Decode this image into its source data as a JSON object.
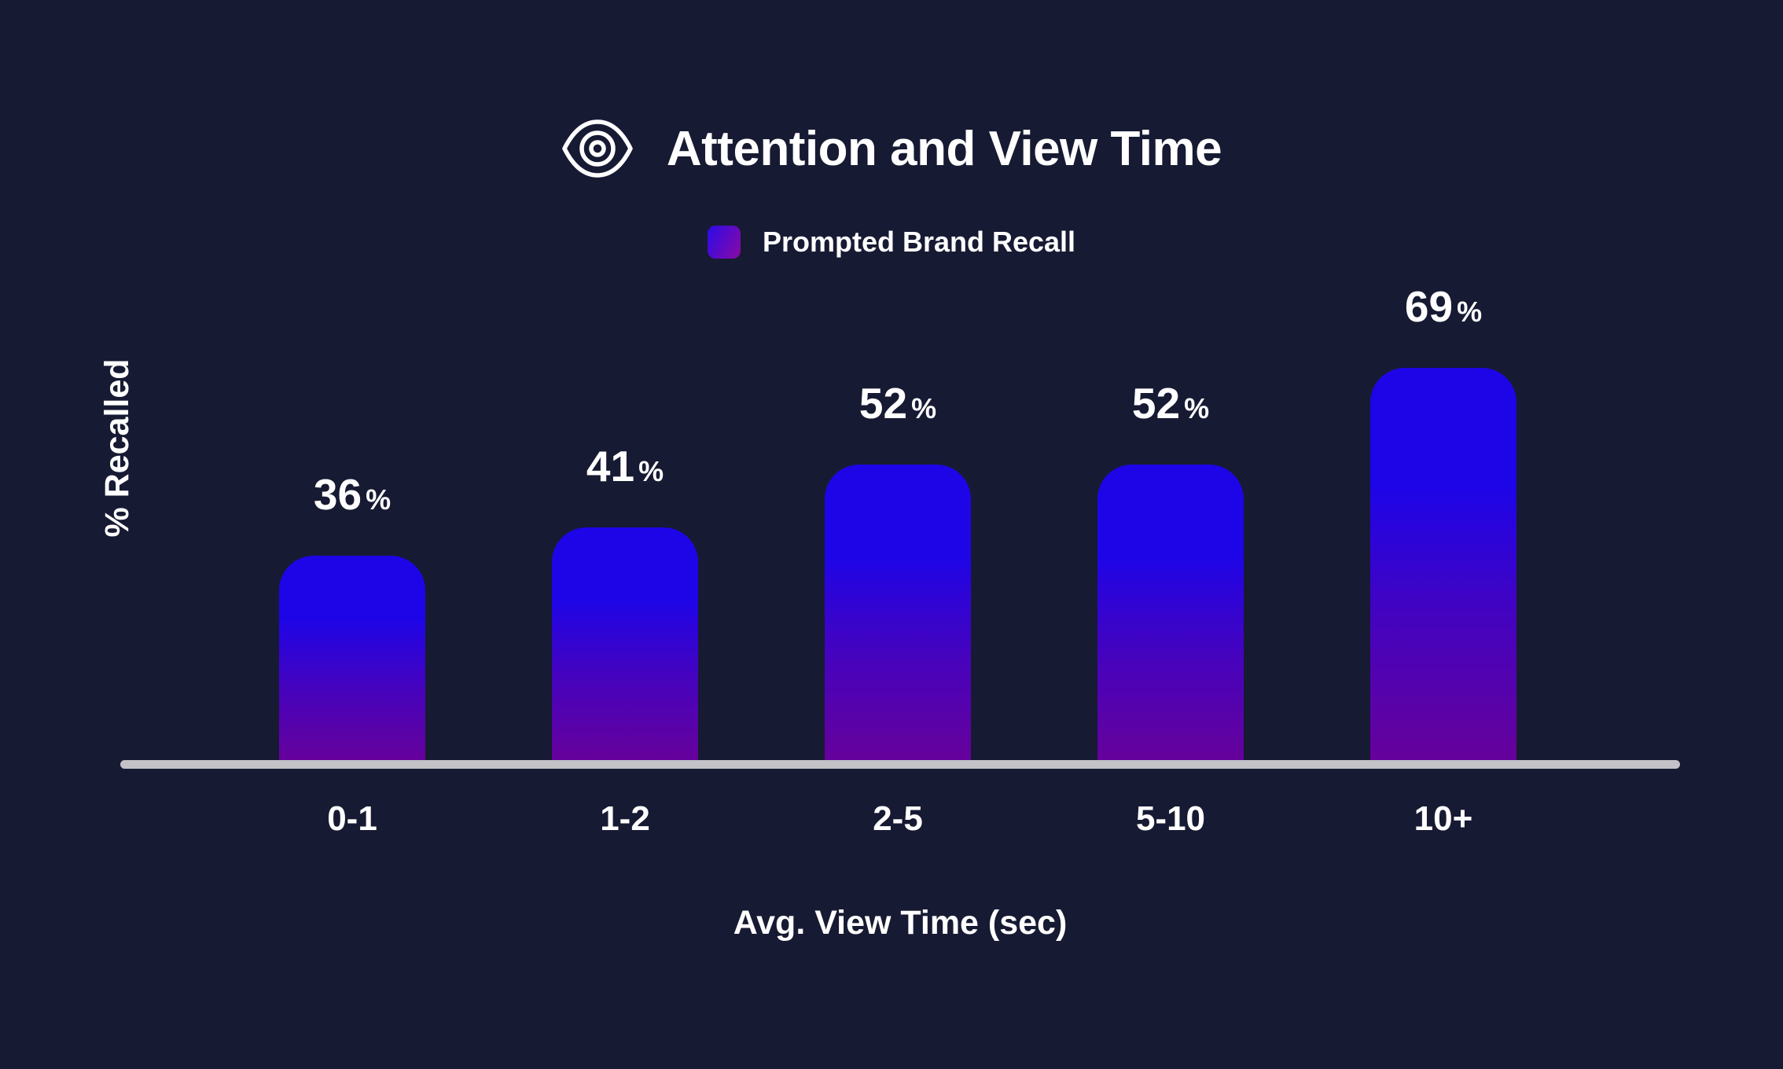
{
  "header": {
    "title": "Attention and View Time",
    "icon": "eye-icon"
  },
  "chart_data": {
    "type": "bar",
    "title": "Attention and View Time",
    "categories": [
      "0-1",
      "1-2",
      "2-5",
      "5-10",
      "10+"
    ],
    "series": [
      {
        "name": "Prompted Brand Recall",
        "values": [
          36,
          41,
          52,
          52,
          69
        ]
      }
    ],
    "value_suffix": "%",
    "xlabel": "Avg. View Time (sec)",
    "ylabel": "% Recalled",
    "ylim": [
      0,
      80
    ],
    "grid": false,
    "legend_position": "top",
    "data_labels": true
  },
  "colors": {
    "background": "#171A33",
    "text": "#FFFFFF",
    "axis_line": "#C2C2C7",
    "bar_gradient_top": "#1D05E8",
    "bar_gradient_bottom": "#66019B",
    "legend_swatch_from": "#2B0BE8",
    "legend_swatch_to": "#8A0AA4"
  }
}
